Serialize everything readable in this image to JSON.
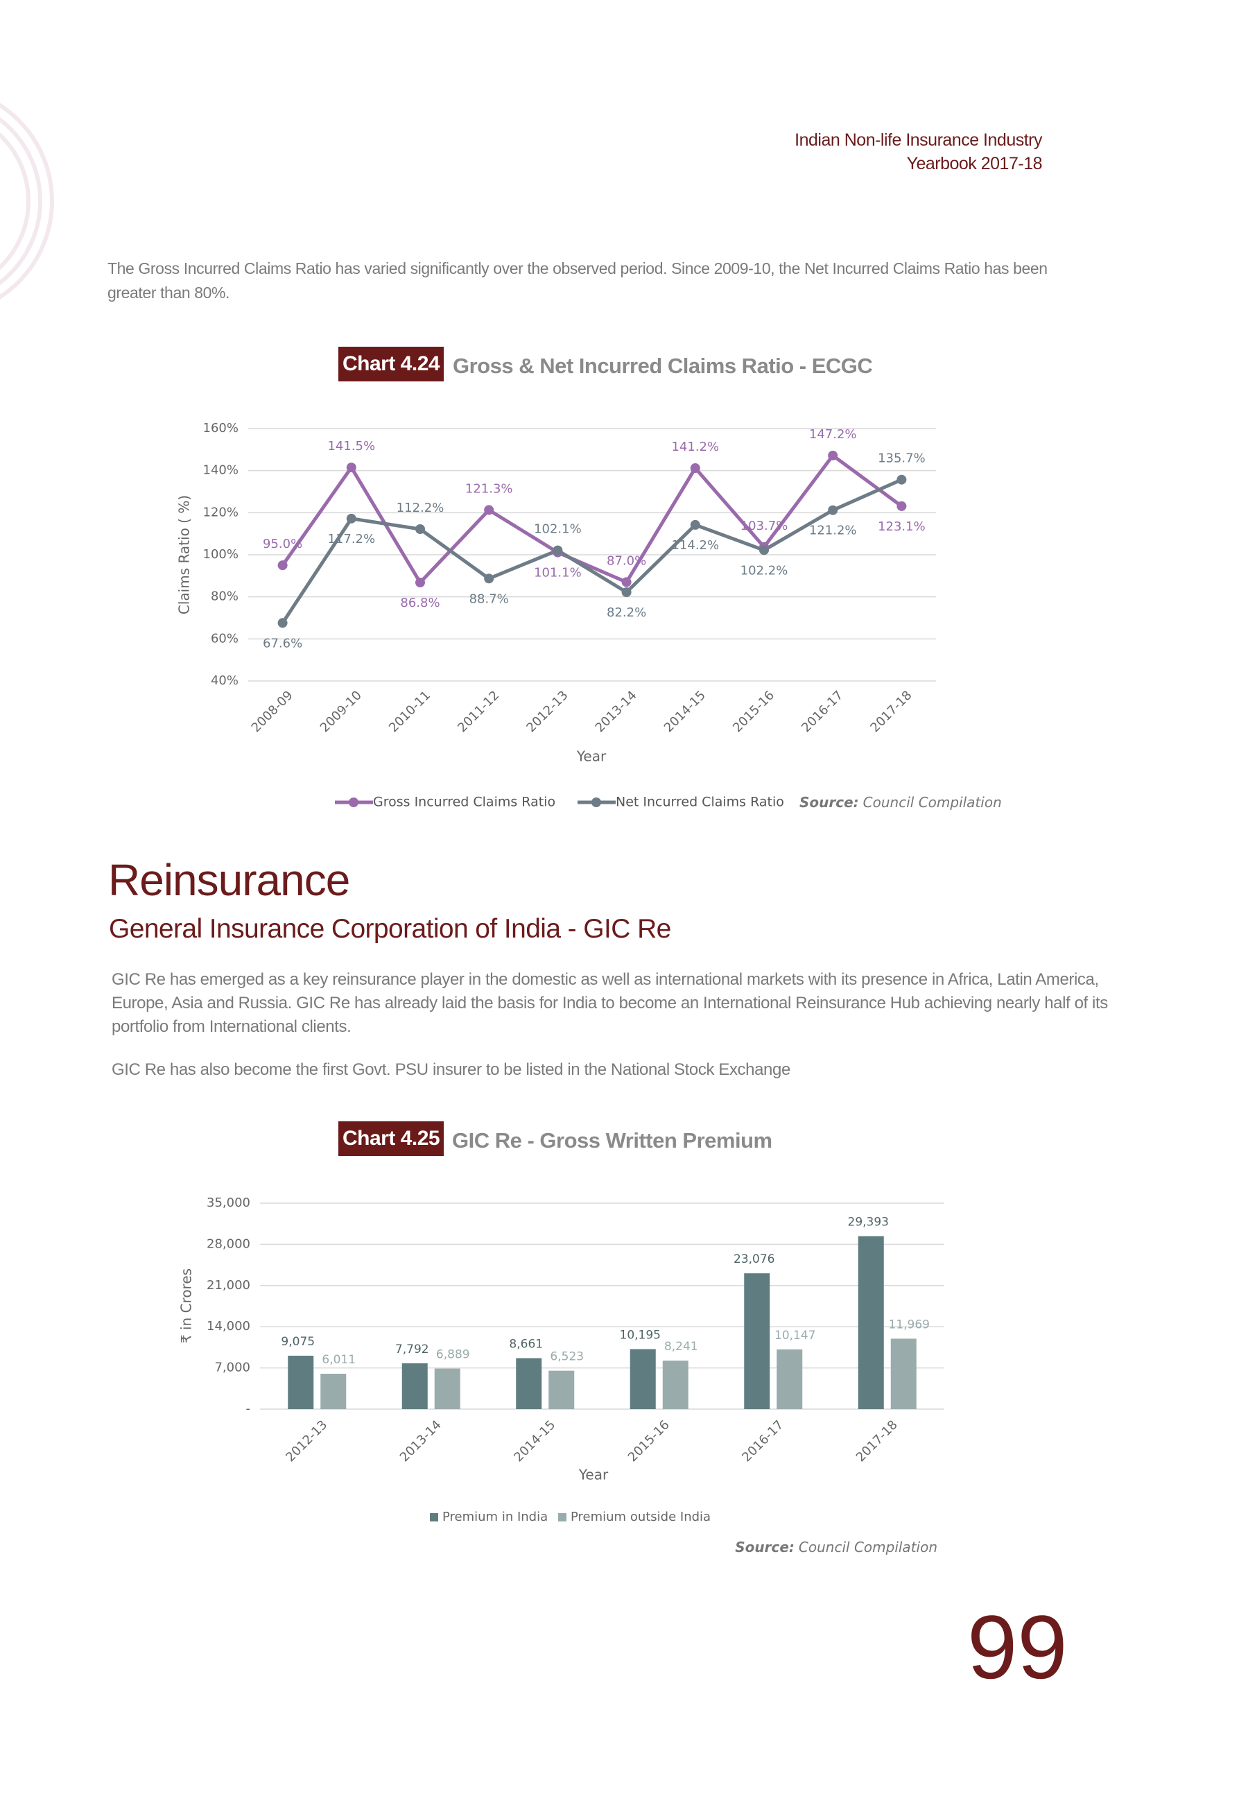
{
  "header": {
    "line1": "Indian Non-life Insurance Industry",
    "line2": "Yearbook 2017-18"
  },
  "intro": "The Gross Incurred Claims Ratio has varied significantly over the observed period. Since 2009-10, the Net Incurred Claims Ratio has been greater than 80%.",
  "section": {
    "heading": "Reinsurance",
    "subheading": "General Insurance Corporation of India - GIC Re",
    "paragraphs": [
      "GIC Re has emerged as a key reinsurance player in the domestic as well as international markets with its presence in Africa, Latin America, Europe, Asia and Russia. GIC Re has already laid the basis for India to become an International Reinsurance Hub achieving nearly half of its portfolio from International clients.",
      "GIC Re has also become the first Govt. PSU insurer to be listed in the National Stock Exchange"
    ]
  },
  "page_number": "99",
  "chart_data": [
    {
      "type": "line",
      "chart_label": "Chart 4.24",
      "title": "Gross & Net Incurred Claims Ratio - ECGC",
      "x_label": "Year",
      "y_label": "Claims Ratio ( %)",
      "source_label": "Source:",
      "source": "Council Compilation",
      "categories": [
        "2008-09",
        "2009-10",
        "2010-11",
        "2011-12",
        "2012-13",
        "2013-14",
        "2014-15",
        "2015-16",
        "2016-17",
        "2017-18"
      ],
      "series": [
        {
          "name": "Gross Incurred Claims Ratio",
          "color": "#9a6aac",
          "values": [
            95.0,
            141.5,
            86.8,
            121.3,
            101.1,
            87.0,
            141.2,
            103.7,
            147.2,
            123.1
          ],
          "value_labels": [
            "95.0%",
            "141.5%",
            "86.8%",
            "121.3%",
            "101.1%",
            "87.0%",
            "141.2%",
            "103.7%",
            "147.2%",
            "123.1%"
          ]
        },
        {
          "name": "Net Incurred Claims Ratio",
          "color": "#6d7c87",
          "values": [
            67.6,
            117.2,
            112.2,
            88.7,
            102.1,
            82.2,
            114.2,
            102.2,
            121.2,
            135.7
          ],
          "value_labels": [
            "67.6%",
            "117.2%",
            "112.2%",
            "88.7%",
            "102.1%",
            "82.2%",
            "114.2%",
            "102.2%",
            "121.2%",
            "135.7%"
          ]
        }
      ],
      "ylim": [
        40,
        160
      ],
      "yticks": [
        {
          "value": 40,
          "label": "40%"
        },
        {
          "value": 60,
          "label": "60%"
        },
        {
          "value": 80,
          "label": "80%"
        },
        {
          "value": 100,
          "label": "100%"
        },
        {
          "value": 120,
          "label": "120%"
        },
        {
          "value": 140,
          "label": "140%"
        },
        {
          "value": 160,
          "label": "160%"
        }
      ],
      "grid": true,
      "legend": "bottom"
    },
    {
      "type": "bar",
      "chart_label": "Chart 4.25",
      "title": "GIC Re - Gross Written Premium",
      "x_label": "Year",
      "y_label": "₹ in Crores",
      "source_label": "Source:",
      "source": "Council Compilation",
      "categories": [
        "2012-13",
        "2013-14",
        "2014-15",
        "2015-16",
        "2016-17",
        "2017-18"
      ],
      "series": [
        {
          "name": "Premium in India",
          "color": "#5f7d80",
          "values": [
            9075,
            7792,
            8661,
            10195,
            23076,
            29393
          ],
          "value_labels": [
            "9,075",
            "7,792",
            "8,661",
            "10,195",
            "23,076",
            "29,393"
          ]
        },
        {
          "name": "Premium outside India",
          "color": "#9aabac",
          "values": [
            6011,
            6889,
            6523,
            8241,
            10147,
            11969
          ],
          "value_labels": [
            "6,011",
            "6,889",
            "6,523",
            "8,241",
            "10,147",
            "11,969"
          ]
        }
      ],
      "ylim": [
        0,
        35000
      ],
      "yticks": [
        {
          "value": 0,
          "label": "-"
        },
        {
          "value": 7000,
          "label": "7,000"
        },
        {
          "value": 14000,
          "label": "14,000"
        },
        {
          "value": 21000,
          "label": "21,000"
        },
        {
          "value": 28000,
          "label": "28,000"
        },
        {
          "value": 35000,
          "label": "35,000"
        }
      ],
      "grid": true,
      "legend": "bottom"
    }
  ]
}
